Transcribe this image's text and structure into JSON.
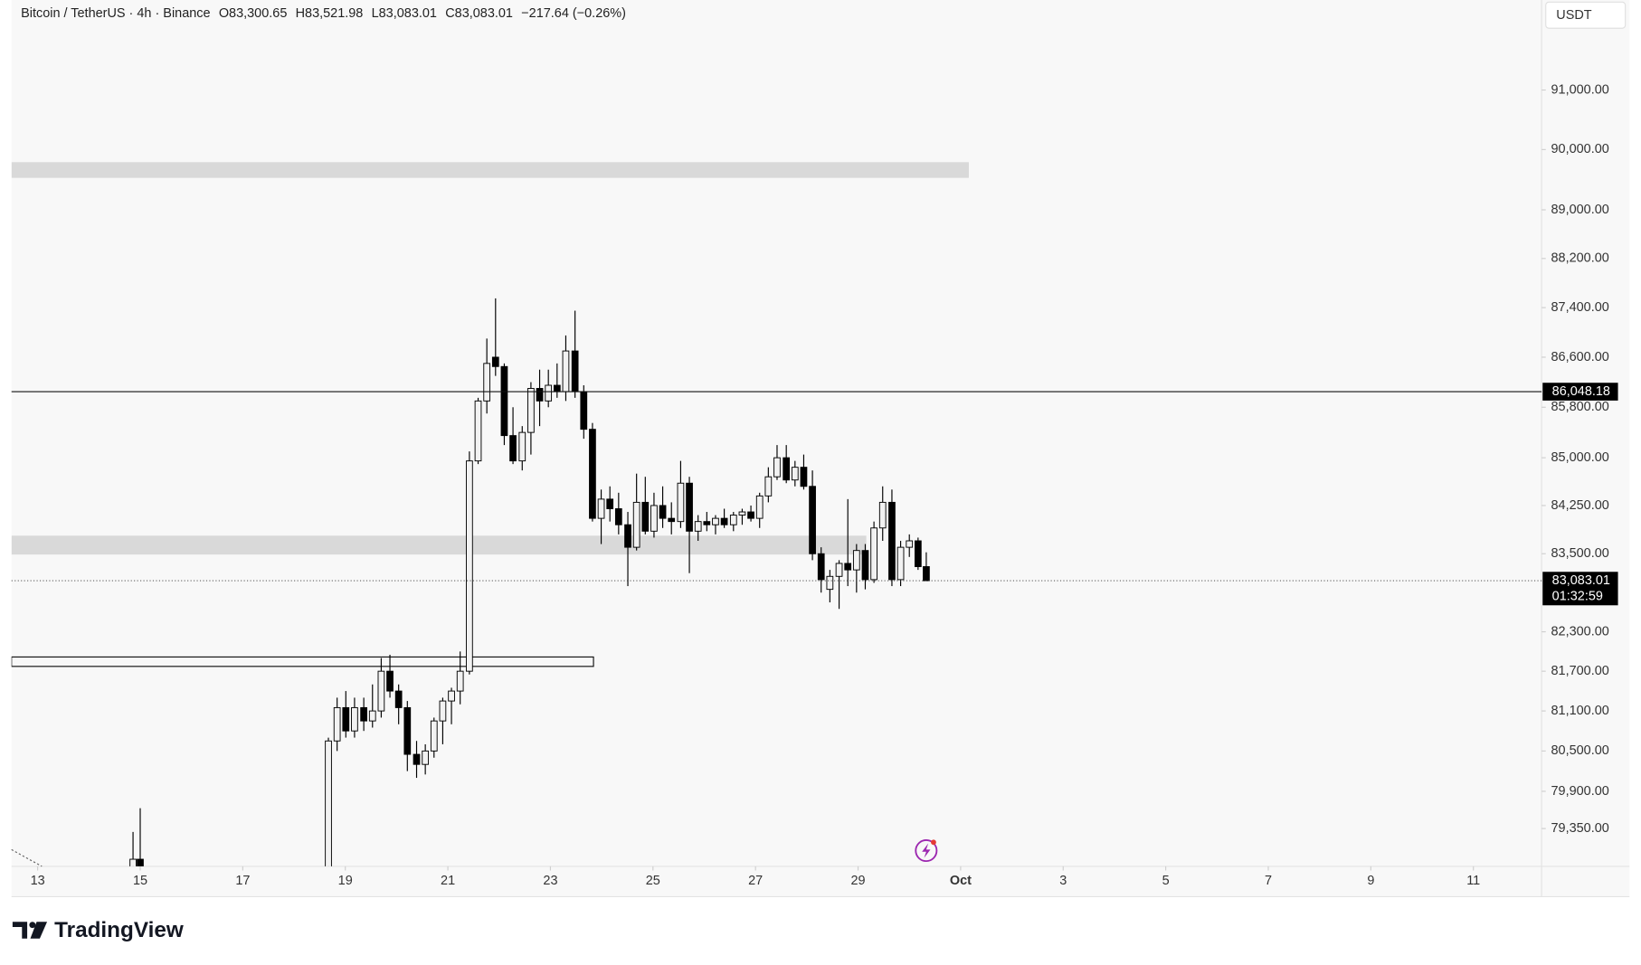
{
  "chart_data": {
    "type": "candlestick",
    "symbol": "Bitcoin / TetherUS · 4h · Binance",
    "header_values": [
      "O83,300.65",
      "H83,521.98",
      "L83,083.01",
      "C83,083.01",
      "−217.64 (−0.26%)"
    ],
    "currency": "USDT",
    "brand": "TradingView",
    "log_scale": true,
    "up_color": "#f2f2f2",
    "down_color": "#000000",
    "outline_color": "#000000",
    "x": [
      14.86,
      15.0,
      18.67,
      18.84,
      19.01,
      19.18,
      19.36,
      19.53,
      19.7,
      19.87,
      20.04,
      20.21,
      20.39,
      20.56,
      20.73,
      20.9,
      21.07,
      21.24,
      21.42,
      21.59,
      21.76,
      21.93,
      22.1,
      22.27,
      22.45,
      22.62,
      22.79,
      22.96,
      23.13,
      23.3,
      23.48,
      23.65,
      23.82,
      23.99,
      24.16,
      24.33,
      24.51,
      24.68,
      24.85,
      25.02,
      25.19,
      25.36,
      25.54,
      25.71,
      25.88,
      26.05,
      26.22,
      26.39,
      26.57,
      26.74,
      26.91,
      27.08,
      27.25,
      27.42,
      27.6,
      27.77,
      27.94,
      28.11,
      28.28,
      28.45,
      28.63,
      28.8,
      28.97,
      29.14,
      29.31,
      29.48,
      29.66,
      29.83,
      30.0,
      30.17,
      30.33
    ],
    "open": [
      78700,
      78900,
      78600,
      80650,
      81150,
      80800,
      81150,
      80950,
      81100,
      81700,
      81400,
      81150,
      80450,
      80300,
      80500,
      80950,
      81250,
      81400,
      81700,
      84950,
      85900,
      86600,
      86450,
      85350,
      84950,
      85400,
      86100,
      85900,
      86150,
      86050,
      86700,
      86050,
      85450,
      84050,
      84350,
      84200,
      83950,
      83600,
      84300,
      83850,
      84250,
      84050,
      84000,
      84600,
      83850,
      84000,
      83950,
      84050,
      83950,
      84100,
      84150,
      84050,
      84400,
      84700,
      85000,
      84650,
      84850,
      84550,
      83500,
      82950,
      83150,
      83350,
      83250,
      83550,
      83100,
      83900,
      84300,
      83100,
      83600,
      83700,
      83300.65
    ],
    "high": [
      79300,
      79650,
      80700,
      81300,
      81400,
      81300,
      81300,
      81500,
      81900,
      81950,
      81500,
      81250,
      80650,
      80600,
      81000,
      81300,
      81450,
      82000,
      85100,
      85950,
      86900,
      87550,
      86500,
      85800,
      85500,
      86200,
      86400,
      86400,
      86500,
      86950,
      87350,
      86150,
      85550,
      84500,
      84550,
      84450,
      84150,
      84750,
      84700,
      84450,
      84550,
      84300,
      84950,
      84700,
      84100,
      84150,
      84100,
      84200,
      84150,
      84200,
      84250,
      84450,
      84850,
      85200,
      85200,
      84950,
      85050,
      84800,
      83600,
      83250,
      83400,
      84350,
      83650,
      83650,
      84000,
      84550,
      84500,
      83700,
      83800,
      83750,
      83521.98
    ],
    "low": [
      78600,
      78700,
      78500,
      80500,
      80700,
      80700,
      80800,
      80850,
      81000,
      81300,
      80900,
      80200,
      80100,
      80150,
      80400,
      80600,
      80900,
      81200,
      81650,
      84900,
      85700,
      86300,
      85200,
      84900,
      84800,
      85050,
      85500,
      85800,
      85950,
      85900,
      85950,
      85300,
      84000,
      83650,
      84000,
      83800,
      83000,
      83550,
      83800,
      83750,
      83900,
      83800,
      83900,
      83200,
      83700,
      83850,
      83800,
      83900,
      83850,
      83950,
      84000,
      83900,
      84300,
      84650,
      84600,
      84550,
      84500,
      83400,
      82900,
      82750,
      82650,
      83000,
      82900,
      82950,
      83050,
      83700,
      83000,
      83000,
      83450,
      83250,
      83083.01
    ],
    "close": [
      78900,
      78750,
      80650,
      81150,
      80800,
      81150,
      80950,
      81100,
      81700,
      81400,
      81150,
      80450,
      80300,
      80500,
      80950,
      81250,
      81400,
      81700,
      84950,
      85900,
      86500,
      86450,
      85350,
      84950,
      85400,
      86100,
      85900,
      86150,
      86050,
      86700,
      86050,
      85450,
      84050,
      84350,
      84200,
      83950,
      83600,
      84300,
      83850,
      84250,
      84050,
      84000,
      84600,
      83850,
      84000,
      83950,
      84050,
      83950,
      84100,
      84150,
      84050,
      84400,
      84700,
      85000,
      84650,
      84850,
      84550,
      83500,
      83100,
      83150,
      83350,
      83250,
      83550,
      83100,
      83900,
      84300,
      83100,
      83600,
      83700,
      83300,
      83083.01
    ],
    "xlim": [
      12.49,
      42.33
    ],
    "ylim": [
      78796,
      92532
    ],
    "xticks": [
      13,
      15,
      17,
      19,
      21,
      23,
      25,
      27,
      29,
      {
        "value": 31,
        "label": "Oct"
      },
      {
        "value": 33,
        "label": "3"
      },
      {
        "value": 35,
        "label": "5"
      },
      {
        "value": 37,
        "label": "7"
      },
      {
        "value": 39,
        "label": "9"
      },
      {
        "value": 41,
        "label": "11"
      }
    ],
    "yticks": [
      {
        "value": 91000,
        "label": "91,000.00"
      },
      {
        "value": 90000,
        "label": "90,000.00"
      },
      {
        "value": 89000,
        "label": "89,000.00"
      },
      {
        "value": 88200,
        "label": "88,200.00"
      },
      {
        "value": 87400,
        "label": "87,400.00"
      },
      {
        "value": 86600,
        "label": "86,600.00"
      },
      {
        "value": 85800,
        "label": "85,800.00"
      },
      {
        "value": 85000,
        "label": "85,000.00"
      },
      {
        "value": 84250,
        "label": "84,250.00"
      },
      {
        "value": 83500,
        "label": "83,500.00"
      },
      {
        "value": 82300,
        "label": "82,300.00"
      },
      {
        "value": 81700,
        "label": "81,700.00"
      },
      {
        "value": 81100,
        "label": "81,100.00"
      },
      {
        "value": 80500,
        "label": "80,500.00"
      },
      {
        "value": 79900,
        "label": "79,900.00"
      },
      {
        "value": 79350,
        "label": "79,350.00"
      }
    ],
    "zones": [
      {
        "ylim": [
          89529,
          89790
        ],
        "xlim": [
          12.49,
          31.16
        ],
        "style": "fill"
      },
      {
        "ylim": [
          83488,
          83780
        ],
        "xlim": [
          12.49,
          29.16
        ],
        "style": "fill"
      },
      {
        "ylim": [
          81773,
          81916
        ],
        "xlim": [
          12.49,
          23.84
        ],
        "style": "outline"
      }
    ],
    "price_line": {
      "value": 86048.18,
      "label": "86,048.18"
    },
    "last_price": {
      "value": 83083.01,
      "label": "83,083.01",
      "countdown": "01:32:59"
    }
  }
}
